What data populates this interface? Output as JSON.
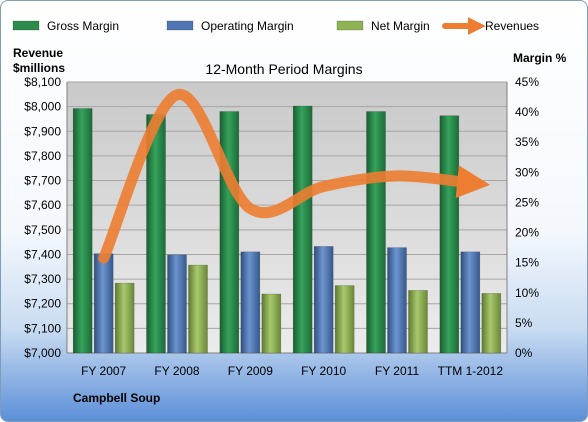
{
  "chart_data": {
    "type": "bar",
    "title": "12-Month Period Margins",
    "company": "Campbell Soup",
    "left_axis_label": [
      "Revenue",
      "$millions"
    ],
    "right_axis_label": "Margin %",
    "categories": [
      "FY 2007",
      "FY 2008",
      "FY 2009",
      "FY 2010",
      "FY 2011",
      "TTM 1-2012"
    ],
    "left_ticks": [
      "$7,000",
      "$7,100",
      "$7,200",
      "$7,300",
      "$7,400",
      "$7,500",
      "$7,600",
      "$7,700",
      "$7,800",
      "$7,900",
      "$8,000",
      "$8,100"
    ],
    "right_ticks": [
      "0%",
      "5%",
      "10%",
      "15%",
      "20%",
      "25%",
      "30%",
      "35%",
      "40%",
      "45%"
    ],
    "left_ylim": [
      7000,
      8100
    ],
    "right_ylim": [
      0,
      45
    ],
    "legend_position": "top",
    "grid": true,
    "series": [
      {
        "name": "Gross Margin",
        "type": "bar",
        "axis": "right",
        "color": "#2e8b4e",
        "values": [
          40.6,
          39.6,
          40.1,
          41.0,
          40.1,
          39.4
        ]
      },
      {
        "name": "Operating Margin",
        "type": "bar",
        "axis": "right",
        "color": "#4f76b3",
        "values": [
          16.5,
          16.3,
          16.8,
          17.7,
          17.5,
          16.8
        ]
      },
      {
        "name": "Net Margin",
        "type": "bar",
        "axis": "right",
        "color": "#8fb252",
        "values": [
          11.6,
          14.6,
          9.8,
          11.2,
          10.4,
          9.9
        ]
      },
      {
        "name": "Revenues",
        "type": "line",
        "axis": "left",
        "color": "#ed7d31",
        "values": [
          7385,
          8048,
          7586,
          7676,
          7719,
          7690
        ]
      }
    ]
  }
}
